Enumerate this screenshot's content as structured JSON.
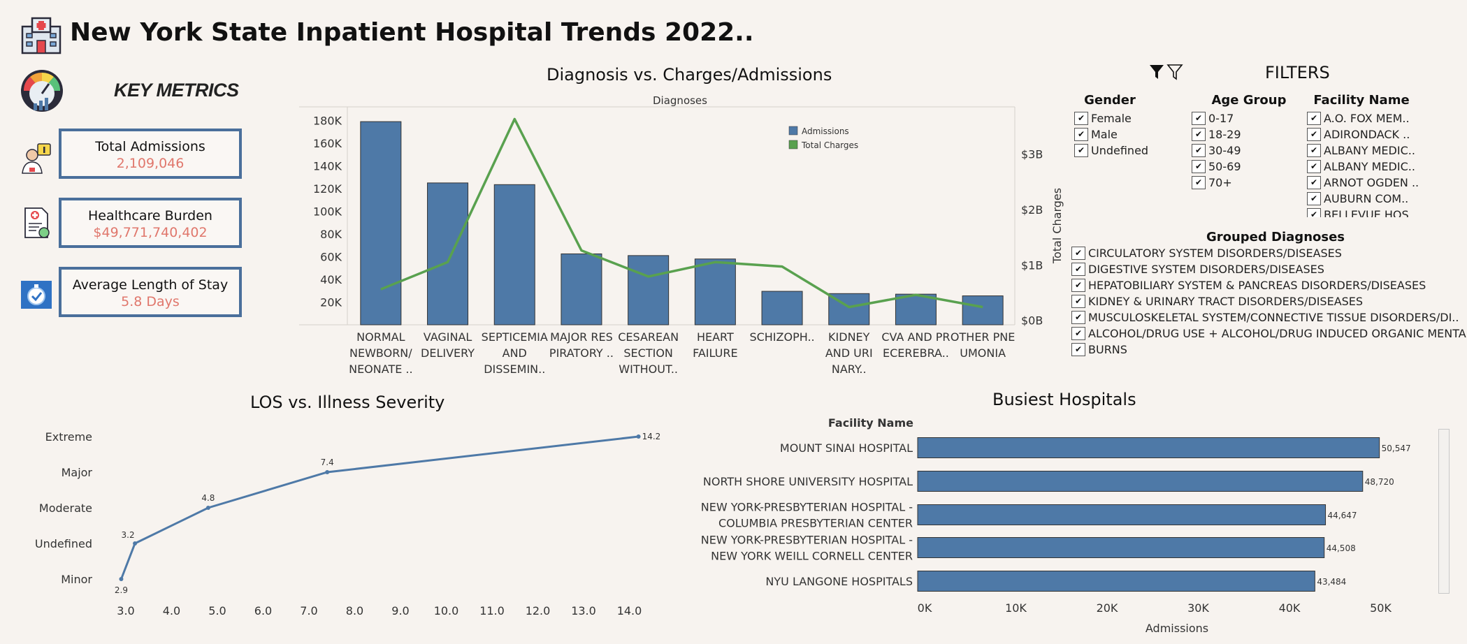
{
  "page_title": "New York State Inpatient Hospital Trends 2022..",
  "key_metrics": {
    "title": "KEY METRICS",
    "cards": [
      {
        "label": "Total Admissions",
        "value": "2,109,046",
        "icon": "doctor-info-icon"
      },
      {
        "label": "Healthcare Burden",
        "value": "$49,771,740,402",
        "icon": "medical-bill-icon"
      },
      {
        "label": "Average Length of Stay",
        "value": "5.8 Days",
        "icon": "stopwatch-icon"
      }
    ]
  },
  "colors": {
    "bar": "#4e79a7",
    "line": "#59a14f",
    "accent_value": "#e0776c",
    "card_border": "#4a6f9b"
  },
  "diagnosis_chart": {
    "title": "Diagnosis vs. Charges/Admissions",
    "header": "Diagnoses",
    "right_axis_label": "Total Charges",
    "legend": [
      "Admissions",
      "Total Charges"
    ],
    "left_ticks": [
      "180K",
      "160K",
      "140K",
      "120K",
      "100K",
      "80K",
      "60K",
      "40K",
      "20K"
    ],
    "right_ticks": [
      "$3B",
      "$2B",
      "$1B",
      "$0B"
    ],
    "categories": [
      [
        "NORMAL",
        "NEWBORN/",
        "NEONATE .."
      ],
      [
        "VAGINAL",
        "DELIVERY"
      ],
      [
        "SEPTICEMIA",
        "AND",
        "DISSEMIN.."
      ],
      [
        "MAJOR RES",
        "PIRATORY .."
      ],
      [
        "CESAREAN",
        "SECTION",
        "WITHOUT.."
      ],
      [
        "HEART",
        "FAILURE"
      ],
      [
        "SCHIZOPH.."
      ],
      [
        "KIDNEY",
        "AND URI",
        "NARY.."
      ],
      [
        "CVA AND PR",
        "ECEREBRA.."
      ],
      [
        "OTHER PNE",
        "UMONIA"
      ]
    ]
  },
  "chart_data": [
    {
      "type": "bar",
      "title": "Diagnosis vs. Charges/Admissions",
      "categories": [
        "NORMAL NEWBORN/ NEONATE ..",
        "VAGINAL DELIVERY",
        "SEPTICEMIA AND DISSEMIN..",
        "MAJOR RES PIRATORY ..",
        "CESAREAN SECTION WITHOUT..",
        "HEART FAILURE",
        "SCHIZOPH..",
        "KIDNEY AND URI NARY..",
        "CVA AND PR ECEREBRA..",
        "OTHER PNE UMONIA"
      ],
      "series": [
        {
          "name": "Admissions",
          "values": [
            179000,
            125000,
            123500,
            62500,
            61000,
            58000,
            29500,
            27500,
            27000,
            25500
          ]
        },
        {
          "name": "Total Charges",
          "values": [
            560000000,
            1050000000,
            3630000000,
            1260000000,
            790000000,
            1050000000,
            970000000,
            240000000,
            460000000,
            240000000
          ]
        }
      ],
      "ylabel": "",
      "y2label": "Total Charges",
      "ylim": [
        0,
        192000
      ],
      "y2lim": [
        -80000000,
        3850000000
      ],
      "legend": "top-right"
    },
    {
      "type": "line",
      "title": "LOS vs. Illness Severity",
      "categories": [
        "Extreme",
        "Major",
        "Moderate",
        "Undefined",
        "Minor"
      ],
      "x": [
        2.9,
        3.2,
        4.8,
        7.4,
        14.2
      ],
      "y": [
        "Minor",
        "Undefined",
        "Moderate",
        "Major",
        "Extreme"
      ],
      "labels": [
        "2.9",
        "3.2",
        "4.8",
        "7.4",
        "14.2"
      ],
      "xticks": [
        "3.0",
        "4.0",
        "5.0",
        "6.0",
        "7.0",
        "8.0",
        "9.0",
        "10.0",
        "11.0",
        "12.0",
        "13.0",
        "14.0"
      ],
      "xlim": [
        2.9,
        14.2
      ]
    },
    {
      "type": "bar",
      "title": "Busiest Hospitals",
      "orientation": "horizontal",
      "ylabel": "Facility Name",
      "xlabel": "Admissions",
      "categories": [
        [
          "MOUNT SINAI HOSPITAL"
        ],
        [
          "NORTH SHORE UNIVERSITY HOSPITAL"
        ],
        [
          "NEW YORK-PRESBYTERIAN HOSPITAL -",
          "COLUMBIA PRESBYTERIAN CENTER"
        ],
        [
          "NEW YORK-PRESBYTERIAN HOSPITAL -",
          "NEW YORK WEILL CORNELL CENTER"
        ],
        [
          "NYU LANGONE HOSPITALS"
        ]
      ],
      "values": [
        50547,
        48720,
        44647,
        44508,
        43484
      ],
      "value_labels": [
        "50,547",
        "48,720",
        "44,647",
        "44,508",
        "43,484"
      ],
      "xticks": [
        "0K",
        "10K",
        "20K",
        "30K",
        "40K",
        "50K"
      ],
      "xlim": [
        0,
        54000
      ]
    }
  ],
  "filters": {
    "title": "FILTERS",
    "gender": {
      "label": "Gender",
      "options": [
        "Female",
        "Male",
        "Undefined"
      ]
    },
    "age_group": {
      "label": "Age Group",
      "options": [
        "0-17",
        "18-29",
        "30-49",
        "50-69",
        "70+"
      ]
    },
    "facility": {
      "label": "Facility Name",
      "options": [
        "A.O. FOX MEM..",
        "ADIRONDACK ..",
        "ALBANY MEDIC..",
        "ALBANY MEDIC..",
        "ARNOT OGDEN ..",
        "AUBURN COM..",
        "BELLEVUE HOS.."
      ]
    },
    "grouped_diagnoses": {
      "label": "Grouped Diagnoses",
      "options": [
        "CIRCULATORY SYSTEM DISORDERS/DISEASES",
        "DIGESTIVE SYSTEM DISORDERS/DISEASES",
        "HEPATOBILIARY SYSTEM & PANCREAS DISORDERS/DISEASES",
        "KIDNEY & URINARY TRACT DISORDERS/DISEASES",
        "MUSCULOSKELETAL SYSTEM/CONNECTIVE TISSUE DISORDERS/DI..",
        "ALCOHOL/DRUG USE + ALCOHOL/DRUG INDUCED ORGANIC MENTA..",
        "BURNS"
      ]
    },
    "check_mark": "✔"
  }
}
